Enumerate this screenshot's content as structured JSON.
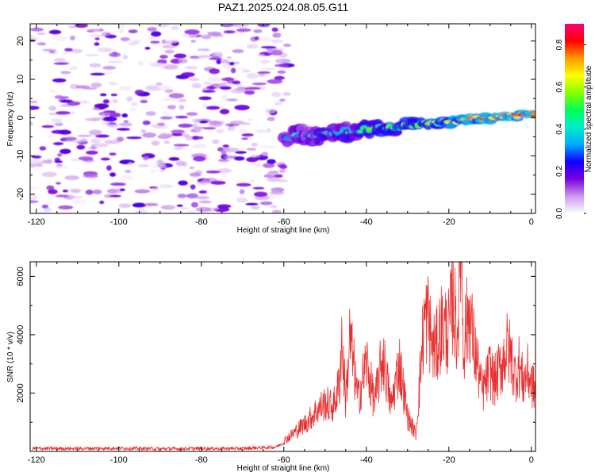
{
  "figure": {
    "title": "PAZ1.2025.024.08.05.G11"
  },
  "chart_data": [
    {
      "type": "heatmap",
      "xlabel": "Height of straight line (km)",
      "ylabel": "Frequency (Hz)",
      "xlim": [
        -121.5,
        1
      ],
      "ylim": [
        -25,
        24.5
      ],
      "x_ticks": [
        -120,
        -100,
        -80,
        -60,
        -40,
        -20,
        0
      ],
      "y_ticks": [
        -20,
        -10,
        0,
        10,
        20
      ],
      "grid": false,
      "colorbar": {
        "label": "Normalized spectral amplitude",
        "range": [
          0,
          0.9
        ],
        "ticks": [
          0.0,
          0.2,
          0.4,
          0.6,
          0.8
        ],
        "tick_labels": [
          "0.0",
          "0.2",
          "0.4",
          "0.6",
          "0.8"
        ],
        "colormap": [
          "#ffffff",
          "#cc99ee",
          "#7700dd",
          "#1100ff",
          "#00aaff",
          "#00eecc",
          "#00ff55",
          "#88ff00",
          "#ffff00",
          "#ff9900",
          "#ff0000",
          "#ff0077"
        ]
      },
      "regions": [
        {
          "name": "noise",
          "x_range": [
            -121.5,
            -59
          ],
          "f_range": [
            -25,
            24.5
          ],
          "amplitude_max": 0.2
        },
        {
          "name": "signal-track",
          "x_start": -60,
          "x_end": 1,
          "freq_start": -5,
          "freq_end": 1,
          "amplitude_start": 0.3,
          "amplitude_end": 0.8
        }
      ]
    },
    {
      "type": "line",
      "xlabel": "Height of straight line (km)",
      "ylabel": "SNR (10 * v/v)",
      "xlim": [
        -121.5,
        1
      ],
      "ylim": [
        0,
        6500
      ],
      "x_ticks": [
        -120,
        -100,
        -80,
        -60,
        -40,
        -20,
        0
      ],
      "y_ticks": [
        2000,
        4000,
        6000
      ],
      "grid": false,
      "series": [
        {
          "color": "#e83030",
          "x": [
            -121,
            -110,
            -100,
            -90,
            -80,
            -70,
            -62,
            -60,
            -58,
            -56,
            -54,
            -52,
            -50,
            -48,
            -46.5,
            -46,
            -45,
            -44,
            -42,
            -40,
            -38,
            -36,
            -34,
            -32,
            -30,
            -28,
            -26,
            -25,
            -24,
            -23,
            -22,
            -20,
            -19,
            -18.5,
            -18,
            -17,
            -16.5,
            -16,
            -15,
            -14,
            -13,
            -12,
            -11,
            -10,
            -9,
            -8,
            -7,
            -6,
            -5,
            -4,
            -3,
            -2,
            -1,
            0,
            1
          ],
          "y": [
            100,
            100,
            110,
            90,
            100,
            100,
            150,
            300,
            500,
            700,
            900,
            1200,
            1400,
            1300,
            2000,
            3300,
            1500,
            3300,
            1500,
            2600,
            1400,
            2800,
            1300,
            2600,
            1000,
            500,
            3800,
            3900,
            3000,
            3000,
            3600,
            3500,
            4500,
            3900,
            3300,
            6500,
            3000,
            3500,
            4100,
            3100,
            2500,
            1700,
            2000,
            2400,
            2000,
            2300,
            2600,
            3000,
            2800,
            2200,
            2500,
            2000,
            2300,
            2000,
            1700
          ]
        }
      ]
    }
  ]
}
